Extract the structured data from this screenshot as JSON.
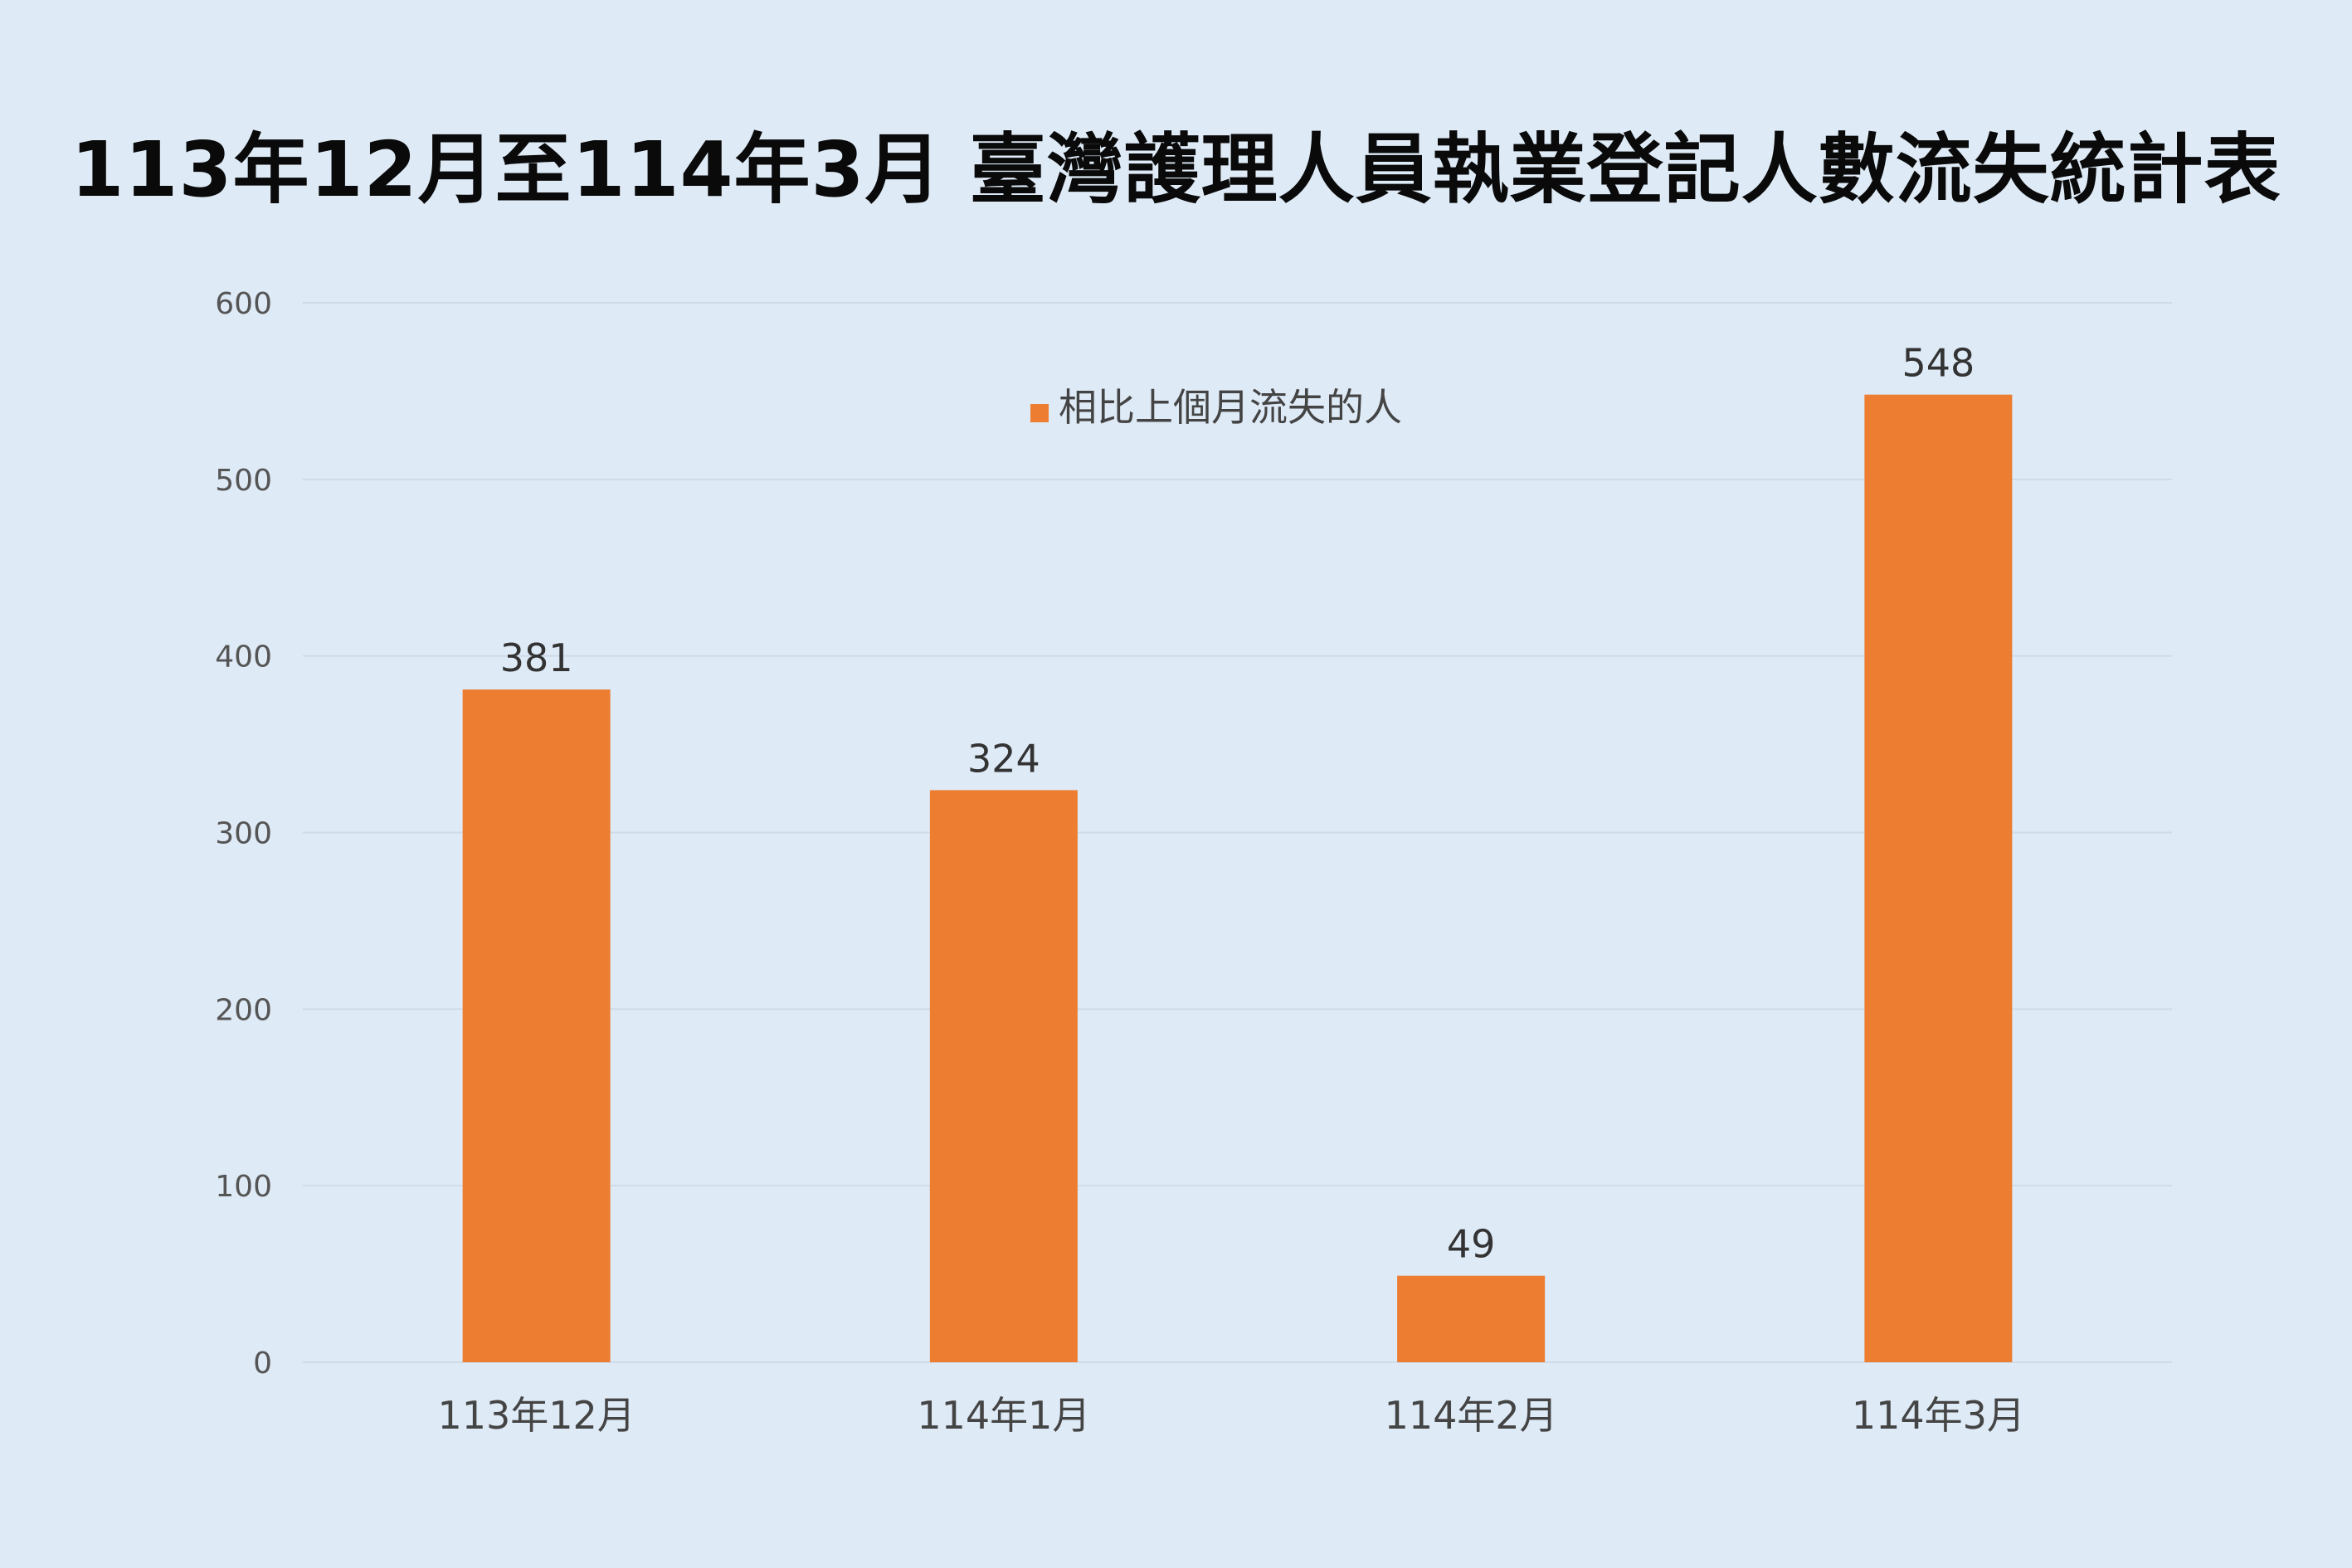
{
  "chart_data": {
    "type": "bar",
    "title": "113年12月至114年3月  臺灣護理人員執業登記人數流失統計表",
    "categories": [
      "113年12月",
      "114年1月",
      "114年2月",
      "114年3月"
    ],
    "series": [
      {
        "name": "相比上個月流失的人",
        "values": [
          381,
          324,
          49,
          548
        ],
        "color": "#ed7d31"
      }
    ],
    "ylim": [
      0,
      600
    ],
    "yticks": [
      0,
      100,
      200,
      300,
      400,
      500,
      600
    ],
    "grid": true,
    "legend_position": "top-center",
    "data_labels": true,
    "background_color": "#deeaf6",
    "gridline_color": "#cfdbe8"
  }
}
